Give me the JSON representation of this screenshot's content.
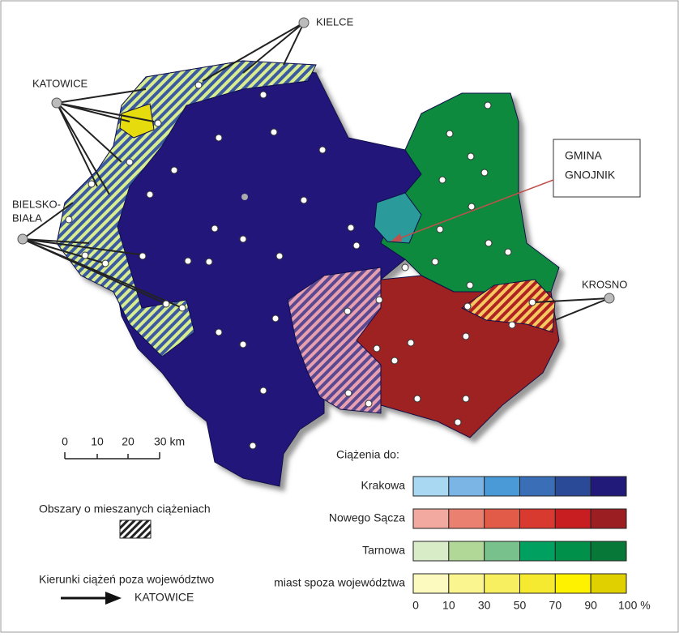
{
  "cities": [
    {
      "label": "KIELCE"
    },
    {
      "label": "KATOWICE"
    },
    {
      "label": [
        "BIELSKO-",
        "BIAŁA"
      ]
    },
    {
      "label": "KROSNO"
    }
  ],
  "annotation": {
    "lines": [
      "GMINA",
      "GNOJNIK"
    ]
  },
  "scale_bar": {
    "labels": [
      "0",
      "10",
      "20",
      "30 km"
    ]
  },
  "legend": {
    "title": "Ciążenia do:",
    "rows": [
      {
        "label": "Krakowa",
        "colors": [
          "#a9d8f2",
          "#7ab5e6",
          "#4a9ad8",
          "#3a6fb8",
          "#2a4a98",
          "#221a78"
        ]
      },
      {
        "label": "Nowego Sącza",
        "colors": [
          "#f2a9a0",
          "#ea8070",
          "#e25a48",
          "#d83a30",
          "#c81e22",
          "#9a1e22"
        ]
      },
      {
        "label": "Tarnowa",
        "colors": [
          "#d8ecc8",
          "#b2d898",
          "#78c08c",
          "#00a060",
          "#00904a",
          "#087838"
        ]
      },
      {
        "label": "miast spoza województwa",
        "colors": [
          "#fdfac0",
          "#fbf590",
          "#f8ef60",
          "#f6ea30",
          "#fff200",
          "#e0d000"
        ]
      }
    ],
    "scale": [
      "0",
      "10",
      "30",
      "50",
      "70",
      "90",
      "100 %"
    ]
  },
  "mixed_areas": {
    "label": "Obszary o mieszanych ciążeniach"
  },
  "directions": {
    "label": "Kierunki ciążeń poza województwo",
    "example": "KATOWICE"
  }
}
